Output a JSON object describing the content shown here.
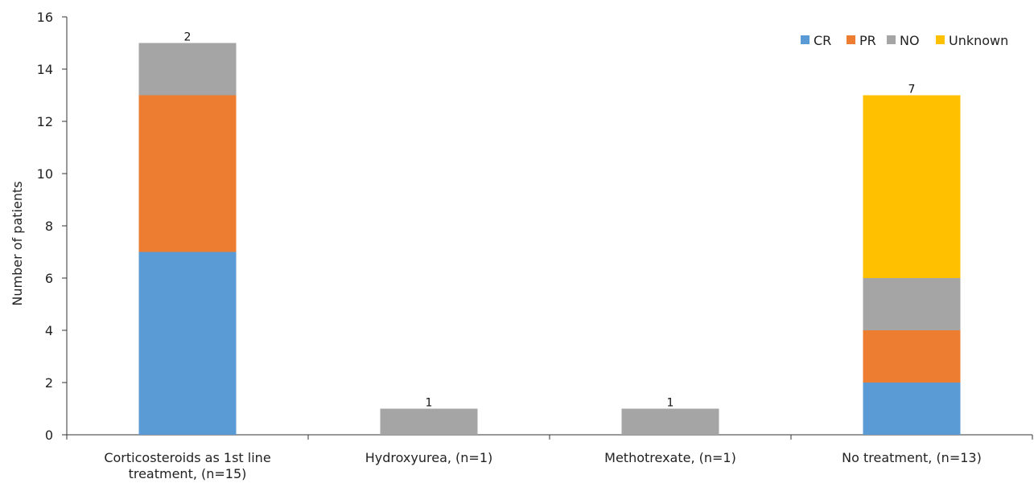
{
  "chart_data": {
    "type": "bar",
    "stacked": true,
    "categories": [
      [
        "Corticosteroids as 1st line",
        "treatment, (n=15)"
      ],
      [
        "Hydroxyurea, (n=1)"
      ],
      [
        "Methotrexate, (n=1)"
      ],
      [
        "No treatment, (n=13)"
      ]
    ],
    "series": [
      {
        "name": "CR",
        "color": "#5B9BD5",
        "values": [
          7,
          0,
          0,
          2
        ]
      },
      {
        "name": "PR",
        "color": "#ED7D31",
        "values": [
          6,
          0,
          0,
          2
        ]
      },
      {
        "name": "NO",
        "color": "#A5A5A5",
        "values": [
          2,
          1,
          1,
          2
        ]
      },
      {
        "name": "Unknown",
        "color": "#FFC000",
        "values": [
          0,
          0,
          0,
          7
        ]
      }
    ],
    "ylabel": "Number of patients",
    "ylim": [
      0,
      16
    ],
    "yticks": [
      0,
      2,
      4,
      6,
      8,
      10,
      12,
      14,
      16
    ],
    "legend_position": "top-right",
    "grid": false
  }
}
